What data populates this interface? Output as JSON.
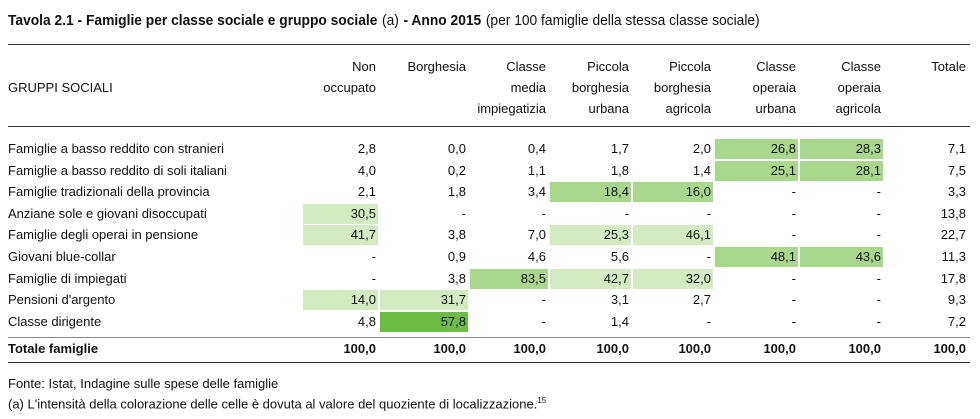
{
  "title": {
    "parts": [
      {
        "text": "Tavola 2.1 - Famiglie per classe sociale e gruppo sociale",
        "bold": true
      },
      {
        "text": "(a)",
        "bold": false
      },
      {
        "text": "- Anno 2015",
        "bold": true
      },
      {
        "text": "(per 100 famiglie della stessa classe sociale)",
        "bold": false
      }
    ]
  },
  "table": {
    "row_header": "GRUPPI SOCIALI",
    "columns": [
      [
        "Non",
        "occupato"
      ],
      [
        "Borghesia"
      ],
      [
        "Classe",
        "media",
        "impiegatizia"
      ],
      [
        "Piccola",
        "borghesia",
        "urbana"
      ],
      [
        "Piccola",
        "borghesia",
        "agricola"
      ],
      [
        "Classe",
        "operaia",
        "urbana"
      ],
      [
        "Classe",
        "operaia",
        "agricola"
      ],
      [
        "Totale"
      ]
    ],
    "rows": [
      {
        "label": "Famiglie a basso reddito con stranieri",
        "cells": [
          "2,8",
          "0,0",
          "0,4",
          "1,7",
          "2,0",
          "26,8",
          "28,3",
          "7,1"
        ],
        "shades": [
          null,
          null,
          null,
          null,
          null,
          "#a9d78c",
          "#a9d78c",
          null
        ]
      },
      {
        "label": "Famiglie a basso reddito di soli italiani",
        "cells": [
          "4,0",
          "0,2",
          "1,1",
          "1,8",
          "1,4",
          "25,1",
          "28,1",
          "7,5"
        ],
        "shades": [
          null,
          null,
          null,
          null,
          null,
          "#a9d78c",
          "#a9d78c",
          null
        ]
      },
      {
        "label": "Famiglie tradizionali della provincia",
        "cells": [
          "2,1",
          "1,8",
          "3,4",
          "18,4",
          "16,0",
          "-",
          "-",
          "3,3"
        ],
        "shades": [
          null,
          null,
          null,
          "#a9d78c",
          "#a9d78c",
          null,
          null,
          null
        ]
      },
      {
        "label": "Anziane sole e giovani disoccupati",
        "cells": [
          "30,5",
          "-",
          "-",
          "-",
          "-",
          "-",
          "-",
          "13,8"
        ],
        "shades": [
          "#d3ebc2",
          null,
          null,
          null,
          null,
          null,
          null,
          null
        ]
      },
      {
        "label": "Famiglie degli operai in pensione",
        "cells": [
          "41,7",
          "3,8",
          "7,0",
          "25,3",
          "46,1",
          "-",
          "-",
          "22,7"
        ],
        "shades": [
          "#d3ebc2",
          null,
          null,
          "#d3ebc2",
          "#d3ebc2",
          null,
          null,
          null
        ]
      },
      {
        "label": "Giovani blue-collar",
        "cells": [
          "-",
          "0,9",
          "4,6",
          "5,6",
          "-",
          "48,1",
          "43,6",
          "11,3"
        ],
        "shades": [
          null,
          null,
          null,
          null,
          null,
          "#a9d78c",
          "#a9d78c",
          null
        ]
      },
      {
        "label": "Famiglie di impiegati",
        "cells": [
          "-",
          "3,8",
          "83,5",
          "42,7",
          "32,0",
          "-",
          "-",
          "17,8"
        ],
        "shades": [
          null,
          null,
          "#a9d78c",
          "#d3ebc2",
          "#d3ebc2",
          null,
          null,
          null
        ]
      },
      {
        "label": "Pensioni d'argento",
        "cells": [
          "14,0",
          "31,7",
          "-",
          "3,1",
          "2,7",
          "-",
          "-",
          "9,3"
        ],
        "shades": [
          "#d3ebc2",
          "#d3ebc2",
          null,
          null,
          null,
          null,
          null,
          null
        ]
      },
      {
        "label": "Classe dirigente",
        "cells": [
          "4,8",
          "57,8",
          "-",
          "1,4",
          "-",
          "-",
          "-",
          "7,2"
        ],
        "shades": [
          null,
          "#6cbd45",
          null,
          null,
          null,
          null,
          null,
          null
        ]
      }
    ],
    "total": {
      "label": "Totale famiglie",
      "cells": [
        "100,0",
        "100,0",
        "100,0",
        "100,0",
        "100,0",
        "100,0",
        "100,0",
        "100,0"
      ]
    }
  },
  "footer": {
    "source": "Fonte: Istat, Indagine sulle spese delle famiglie",
    "note": "(a) L'intensità della colorazione delle celle è dovuta al valore del quoziente di localizzazione.",
    "note_sup": "15"
  }
}
